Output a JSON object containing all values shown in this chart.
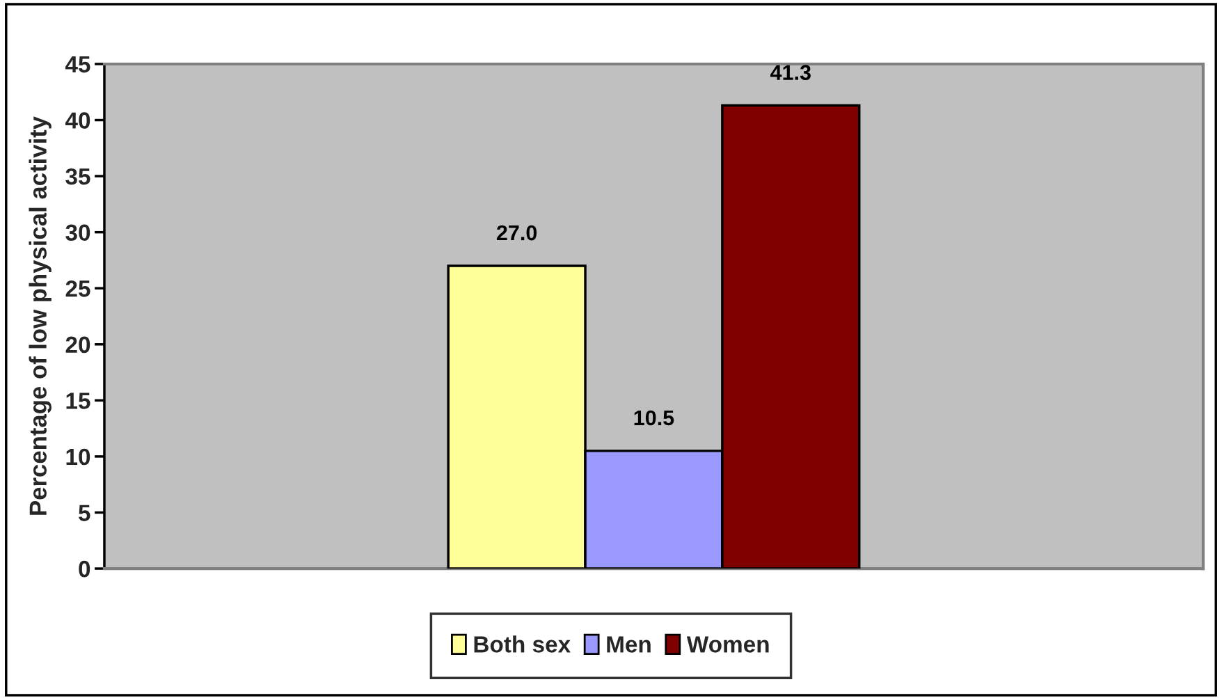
{
  "chart_data": {
    "type": "bar",
    "ylabel": "Percentage of low physical activity",
    "categories": [
      null
    ],
    "series": [
      {
        "name": "Both sex",
        "color": "#ffff99",
        "values": [
          27.0
        ],
        "value_labels": [
          "27.0"
        ]
      },
      {
        "name": "Men",
        "color": "#9999ff",
        "values": [
          10.5
        ],
        "value_labels": [
          "10.5"
        ]
      },
      {
        "name": "Women",
        "color": "#800000",
        "values": [
          41.3
        ],
        "value_labels": [
          "41.3"
        ]
      }
    ],
    "ylim": [
      0,
      45
    ],
    "yticks": [
      0,
      5,
      10,
      15,
      20,
      25,
      30,
      35,
      40,
      45
    ],
    "grid": false,
    "legend": "bottom"
  }
}
